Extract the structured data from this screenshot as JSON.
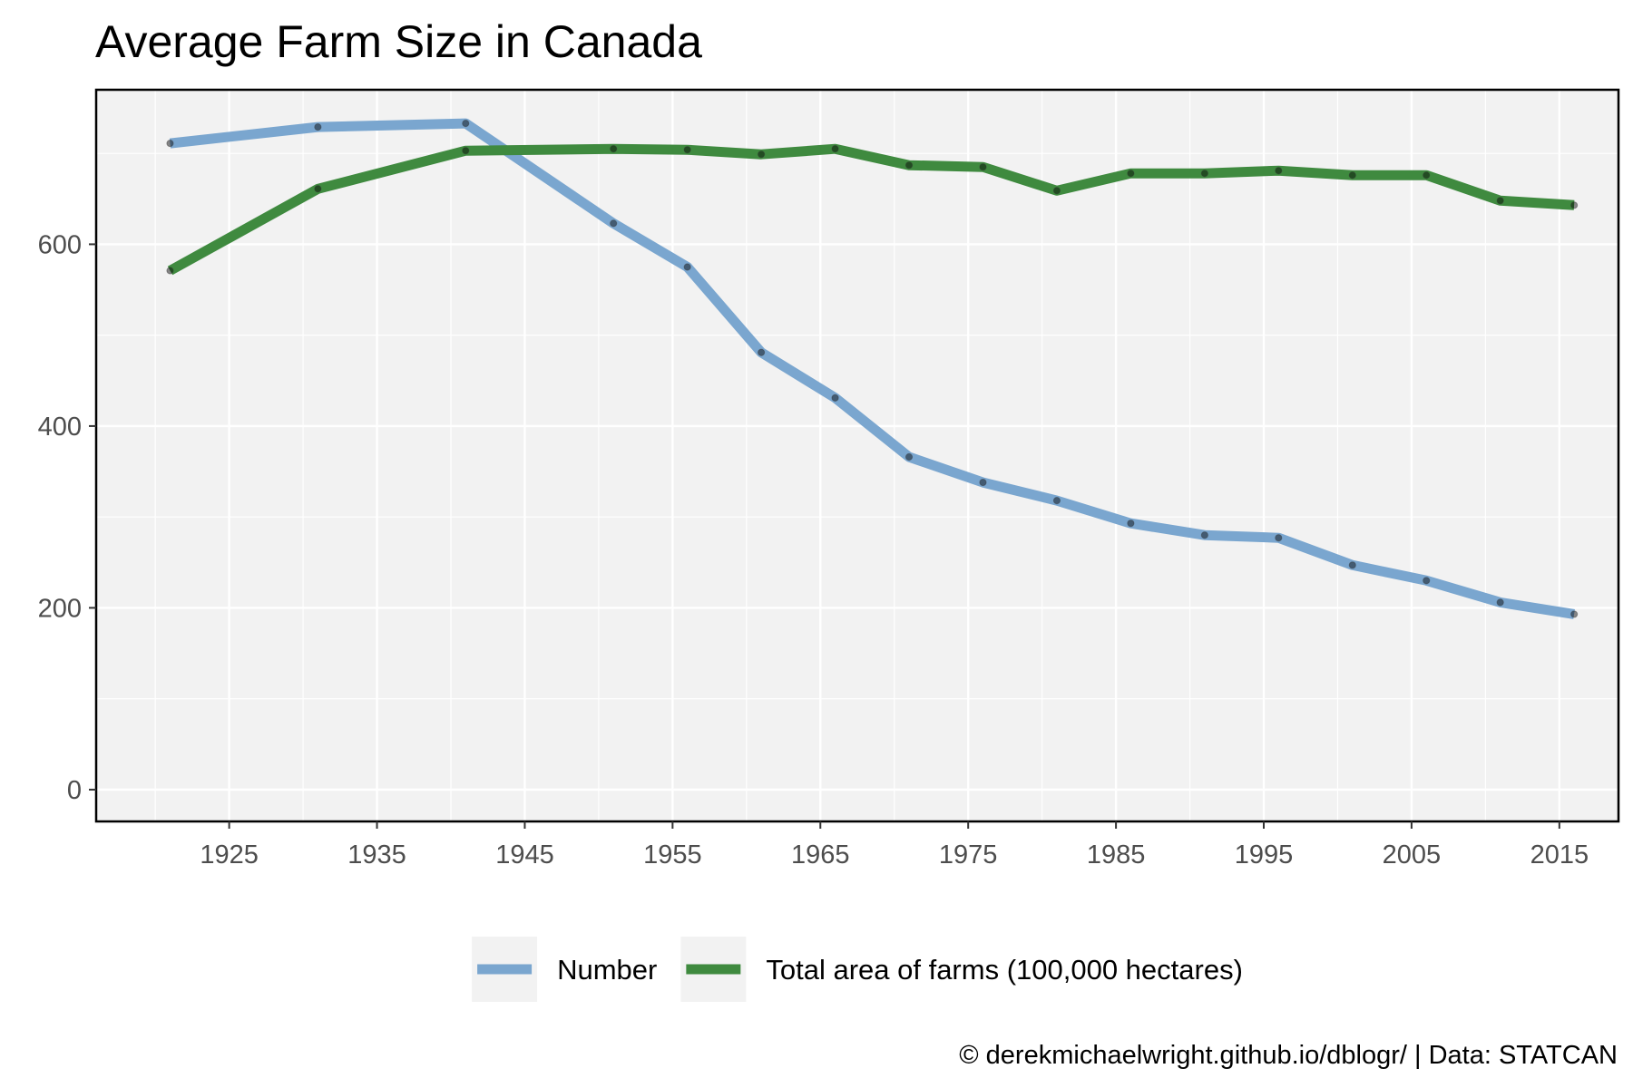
{
  "chart_data": {
    "type": "line",
    "title": "Average Farm Size in Canada",
    "xlabel": "",
    "ylabel": "",
    "caption": "© derekmichaelwright.github.io/dblogr/ | Data: STATCAN",
    "xlim": [
      1916,
      2019
    ],
    "ylim": [
      -35,
      770
    ],
    "x_ticks": [
      1925,
      1935,
      1945,
      1955,
      1965,
      1975,
      1985,
      1995,
      2005,
      2015
    ],
    "y_ticks": [
      0,
      200,
      400,
      600
    ],
    "grid": true,
    "legend_position": "bottom",
    "x": [
      1921,
      1931,
      1941,
      1951,
      1956,
      1961,
      1966,
      1971,
      1976,
      1981,
      1986,
      1991,
      1996,
      2001,
      2006,
      2011,
      2016
    ],
    "series": [
      {
        "name": "Number",
        "color": "#7aa6cf",
        "values": [
          711,
          729,
          733,
          623,
          575,
          481,
          431,
          366,
          338,
          318,
          293,
          280,
          277,
          247,
          230,
          206,
          193
        ]
      },
      {
        "name": "Total area of farms (100,000 hectares)",
        "color": "#3f8a3f",
        "values": [
          571,
          661,
          703,
          705,
          704,
          699,
          705,
          687,
          685,
          659,
          678,
          678,
          681,
          676,
          676,
          648,
          643
        ]
      }
    ]
  }
}
